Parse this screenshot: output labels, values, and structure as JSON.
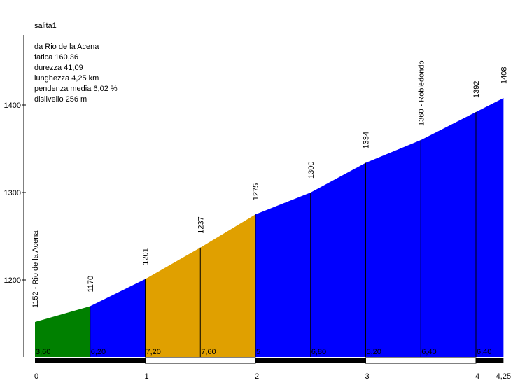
{
  "info": {
    "title": "salita1",
    "lines": [
      "da Rio de la Acena",
      "fatica 160,36",
      "durezza 41,09",
      "lunghezza 4,25 km",
      "pendenza media 6,02 %",
      "dislivello 256 m"
    ]
  },
  "chart_data": {
    "type": "area",
    "title": "salita1",
    "xlabel": "",
    "ylabel": "",
    "x_unit": "km",
    "y_unit": "m",
    "xlim": [
      0,
      4.25
    ],
    "ylim": [
      1110,
      1480
    ],
    "x_ticks": [
      {
        "value": 0,
        "label": "0"
      },
      {
        "value": 1,
        "label": "1"
      },
      {
        "value": 2,
        "label": "2"
      },
      {
        "value": 3,
        "label": "3"
      },
      {
        "value": 4,
        "label": "4"
      },
      {
        "value": 4.25,
        "label": "4,25"
      }
    ],
    "y_ticks": [
      {
        "value": 1200,
        "label": "1200"
      },
      {
        "value": 1300,
        "label": "1300"
      },
      {
        "value": 1400,
        "label": "1400"
      }
    ],
    "points": [
      {
        "x": 0,
        "y": 1152,
        "label": "1152 - Rio de la Acena"
      },
      {
        "x": 0.5,
        "y": 1170,
        "label": "1170"
      },
      {
        "x": 1.0,
        "y": 1201,
        "label": "1201"
      },
      {
        "x": 1.5,
        "y": 1237,
        "label": "1237"
      },
      {
        "x": 2.0,
        "y": 1275,
        "label": "1275"
      },
      {
        "x": 2.5,
        "y": 1300,
        "label": "1300"
      },
      {
        "x": 3.0,
        "y": 1334,
        "label": "1334"
      },
      {
        "x": 3.5,
        "y": 1360,
        "label": "1360 - Robledondo"
      },
      {
        "x": 4.0,
        "y": 1392,
        "label": "1392"
      },
      {
        "x": 4.25,
        "y": 1408,
        "label": "1408"
      }
    ],
    "segments": [
      {
        "x0": 0,
        "x1": 0.5,
        "gradient": "3,60",
        "color": "#008000"
      },
      {
        "x0": 0.5,
        "x1": 1.0,
        "gradient": "6,20",
        "color": "#0000ff"
      },
      {
        "x0": 1.0,
        "x1": 1.5,
        "gradient": "7,20",
        "color": "#e0a000"
      },
      {
        "x0": 1.5,
        "x1": 2.0,
        "gradient": "7,60",
        "color": "#e0a000"
      },
      {
        "x0": 2.0,
        "x1": 2.5,
        "gradient": "5",
        "color": "#0000ff"
      },
      {
        "x0": 2.5,
        "x1": 3.0,
        "gradient": "6,80",
        "color": "#0000ff"
      },
      {
        "x0": 3.0,
        "x1": 3.5,
        "gradient": "5,20",
        "color": "#0000ff"
      },
      {
        "x0": 3.5,
        "x1": 4.0,
        "gradient": "6,40",
        "color": "#0000ff"
      },
      {
        "x0": 4.0,
        "x1": 4.25,
        "gradient": "6,40",
        "color": "#0000ff"
      }
    ],
    "km_bar": {
      "dark": "#000000",
      "light": "#ffffff"
    },
    "grid": false,
    "legend": "none"
  }
}
